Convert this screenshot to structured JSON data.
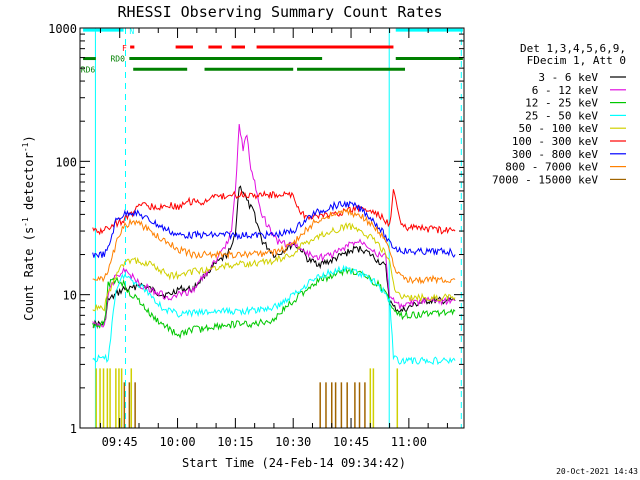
{
  "chart_data": {
    "type": "line",
    "title": "RHESSI Observing Summary Count Rates",
    "xlabel": "Start Time (24-Feb-14 09:34:42)",
    "ylabel_main": "Count Rate (s",
    "ylabel_sup1": "-1",
    "ylabel_mid": " detector",
    "ylabel_sup2": "-1",
    "ylabel_end": ")",
    "yscale": "log",
    "ylim": [
      1,
      1000
    ],
    "xlim_min": [
      34.7,
      134.3
    ],
    "x_unit": "minutes after 09:00 on 24-Feb-14",
    "x_ticks": [
      {
        "value": 45,
        "label": "09:45"
      },
      {
        "value": 60,
        "label": "10:00"
      },
      {
        "value": 75,
        "label": "10:15"
      },
      {
        "value": 90,
        "label": "10:30"
      },
      {
        "value": 105,
        "label": "10:45"
      },
      {
        "value": 120,
        "label": "11:00"
      }
    ],
    "y_ticks": [
      {
        "value": 1,
        "label": "1"
      },
      {
        "value": 10,
        "label": "10"
      },
      {
        "value": 100,
        "label": "100"
      },
      {
        "value": 1000,
        "label": "1000"
      }
    ],
    "legend_header": [
      "Det 1,3,4,5,6,9,",
      "FDecim 1, Att 0"
    ],
    "legend_position": "right",
    "series": [
      {
        "name": "3 - 6 keV",
        "color": "#000000",
        "x": [
          38,
          41,
          42,
          44,
          46,
          48,
          50,
          53,
          56,
          58,
          60,
          62,
          64,
          67,
          70,
          72,
          74,
          75,
          76,
          77,
          78,
          80,
          82,
          85,
          86,
          88,
          90,
          92,
          94,
          97,
          100,
          103,
          106,
          108,
          110,
          112,
          113,
          114,
          115,
          116,
          118,
          120,
          122,
          125,
          128,
          131,
          132
        ],
        "y": [
          6,
          6,
          9,
          10,
          11,
          11,
          12,
          11,
          10,
          10,
          11,
          11,
          11,
          14,
          17,
          19,
          22,
          30,
          65,
          60,
          50,
          40,
          25,
          20,
          20,
          22,
          24,
          22,
          18,
          17,
          18,
          20,
          22,
          22,
          20,
          18,
          17,
          16,
          9,
          8,
          7.5,
          8,
          8.5,
          9,
          9,
          9,
          9
        ]
      },
      {
        "name": "6 - 12 keV",
        "color": "#e010e0",
        "x": [
          38,
          41,
          42,
          44,
          46,
          48,
          50,
          53,
          56,
          58,
          60,
          62,
          64,
          67,
          70,
          72,
          74,
          75,
          76,
          77,
          78,
          79,
          80,
          81,
          82,
          84,
          86,
          88,
          90,
          92,
          94,
          97,
          100,
          103,
          106,
          108,
          110,
          112,
          114,
          115,
          116,
          118,
          120,
          125,
          131,
          132
        ],
        "y": [
          6,
          6,
          10,
          14,
          15,
          14,
          12,
          11,
          10,
          9,
          10,
          10,
          11,
          14,
          18,
          22,
          30,
          60,
          200,
          120,
          160,
          90,
          70,
          50,
          40,
          30,
          25,
          24,
          24,
          22,
          20,
          19,
          20,
          22,
          25,
          25,
          23,
          20,
          19,
          10,
          9,
          8,
          8.5,
          9,
          9,
          9
        ]
      },
      {
        "name": "12 - 25 keV",
        "color": "#00c800",
        "x": [
          38,
          41,
          42,
          44,
          46,
          48,
          50,
          53,
          56,
          58,
          60,
          62,
          64,
          66,
          70,
          75,
          80,
          85,
          88,
          90,
          92,
          95,
          100,
          104,
          106,
          108,
          110,
          112,
          114,
          115,
          116,
          118,
          120,
          125,
          131,
          132
        ],
        "y": [
          6,
          6,
          12,
          13,
          12,
          10,
          9,
          7,
          6,
          5.5,
          5,
          5.2,
          5.5,
          5.5,
          5.8,
          6,
          6,
          6.5,
          8,
          9,
          10,
          12,
          14,
          15,
          15,
          14,
          13,
          12,
          10,
          9,
          8,
          7,
          7,
          7.2,
          7.5,
          7.5
        ]
      },
      {
        "name": "25 - 50 keV",
        "color": "#00ffff",
        "x": [
          38,
          41,
          42,
          44,
          46,
          48,
          50,
          53,
          56,
          58,
          60,
          62,
          64,
          66,
          70,
          75,
          80,
          85,
          88,
          90,
          92,
          95,
          100,
          104,
          106,
          108,
          110,
          112,
          113,
          114,
          115,
          116,
          117,
          120,
          125,
          131,
          132
        ],
        "y": [
          3.3,
          3.3,
          3.3,
          11,
          14,
          13,
          12,
          10,
          8,
          7.5,
          7.2,
          7.2,
          7.3,
          7.3,
          7.5,
          7.5,
          7.6,
          8,
          9,
          10,
          11,
          13,
          15,
          15.5,
          15,
          14,
          13,
          12,
          11,
          10,
          9,
          3.5,
          3.2,
          3.2,
          3.2,
          3.2,
          3.2
        ]
      },
      {
        "name": "50 - 100 keV",
        "color": "#d0d000",
        "x": [
          38,
          41,
          42,
          44,
          46,
          48,
          50,
          53,
          56,
          58,
          60,
          62,
          64,
          66,
          70,
          75,
          80,
          85,
          88,
          90,
          92,
          95,
          100,
          104,
          106,
          108,
          110,
          112,
          114,
          115,
          116,
          117,
          120,
          125,
          131,
          132
        ],
        "y": [
          8,
          8,
          10,
          14,
          17,
          18,
          18,
          17,
          15,
          14,
          14,
          14,
          15,
          15,
          16,
          17,
          17,
          18,
          19,
          20,
          23,
          26,
          30,
          33,
          32,
          30,
          27,
          24,
          20,
          18,
          12,
          10,
          9.5,
          9.5,
          9.5,
          9.5
        ]
      },
      {
        "name": "100 - 300 keV",
        "color": "#ff0000",
        "x": [
          38,
          41,
          42,
          44,
          46,
          48,
          50,
          53,
          56,
          58,
          60,
          62,
          64,
          67,
          70,
          75,
          80,
          85,
          88,
          90,
          92,
          95,
          100,
          104,
          106,
          108,
          110,
          112,
          114,
          115,
          116,
          117,
          118,
          120,
          125,
          131,
          132
        ],
        "y": [
          30,
          30,
          32,
          34,
          36,
          40,
          48,
          46,
          46,
          47,
          45,
          50,
          50,
          50,
          54,
          56,
          56,
          56,
          56,
          56,
          40,
          38,
          40,
          42,
          44,
          44,
          42,
          40,
          36,
          33,
          60,
          45,
          33,
          32,
          31,
          30,
          30
        ]
      },
      {
        "name": "300 - 800 keV",
        "color": "#0000ff",
        "x": [
          38,
          41,
          42,
          44,
          46,
          48,
          50,
          53,
          56,
          58,
          60,
          62,
          64,
          67,
          70,
          75,
          80,
          85,
          88,
          90,
          92,
          95,
          100,
          104,
          106,
          108,
          110,
          112,
          114,
          115,
          116,
          117,
          120,
          125,
          131,
          132
        ],
        "y": [
          20,
          20,
          22,
          36,
          40,
          42,
          40,
          36,
          32,
          30,
          28,
          28,
          28,
          28,
          28,
          28,
          28,
          28,
          29,
          30,
          34,
          40,
          46,
          48,
          46,
          43,
          38,
          33,
          27,
          24,
          23,
          22,
          21,
          21,
          21,
          20
        ]
      },
      {
        "name": "800 - 7000 keV",
        "color": "#ff8000",
        "x": [
          38,
          41,
          42,
          44,
          46,
          48,
          50,
          53,
          56,
          58,
          60,
          62,
          64,
          67,
          70,
          75,
          80,
          85,
          88,
          90,
          92,
          95,
          100,
          104,
          106,
          108,
          110,
          112,
          114,
          115,
          116,
          117,
          120,
          125,
          131,
          132
        ],
        "y": [
          13,
          13,
          15,
          24,
          32,
          35,
          34,
          30,
          26,
          24,
          22,
          21,
          20,
          20,
          20,
          20,
          20,
          21,
          22,
          24,
          28,
          34,
          40,
          42,
          40,
          38,
          34,
          30,
          25,
          22,
          16,
          14,
          13,
          13,
          13,
          13
        ]
      },
      {
        "name": "7000 - 15000 keV",
        "color": "#a06400",
        "x": [],
        "y": []
      }
    ],
    "flags": [
      {
        "name": "N",
        "color": "#00ffff",
        "level": 965,
        "segments": [
          [
            35.5,
            46
          ],
          [
            116.6,
            134
          ]
        ]
      },
      {
        "name": "F",
        "color": "#ff0000",
        "level": 720,
        "segments": [
          [
            47.7,
            48.8
          ],
          [
            59.5,
            64
          ],
          [
            68,
            71.5
          ],
          [
            74,
            77.5
          ],
          [
            80.5,
            116
          ]
        ]
      },
      {
        "name": "RD0",
        "color": "#008000",
        "level": 590,
        "segments": [
          [
            35.5,
            38.8
          ],
          [
            47.5,
            97.5
          ],
          [
            116.6,
            134
          ]
        ]
      },
      {
        "name": "RD6",
        "color": "#008000",
        "level": 490,
        "segments": [
          [
            48.5,
            62.5
          ],
          [
            67,
            90
          ],
          [
            91,
            119
          ]
        ]
      }
    ],
    "vertical_lines": {
      "solid": [
        {
          "x": 38.7,
          "color": "#00ffff"
        },
        {
          "x": 114.9,
          "color": "#00ffff"
        }
      ],
      "dashed": [
        {
          "x": 46.5,
          "color": "#00ffff"
        },
        {
          "x": 133.6,
          "color": "#00ffff"
        }
      ]
    },
    "spikes": {
      "yellow_x": [
        38.9,
        39.9,
        40.8,
        41.8,
        42.5,
        44.0,
        44.8,
        45.5,
        48.0,
        110.0,
        110.8,
        117.0
      ],
      "brown_x": [
        46.2,
        47.5,
        49.0,
        97.0,
        98.5,
        100.0,
        101.0,
        102.5,
        104.0,
        106.0,
        107.2,
        108.6
      ]
    },
    "timestamp": "20-Oct-2021 14:43"
  }
}
